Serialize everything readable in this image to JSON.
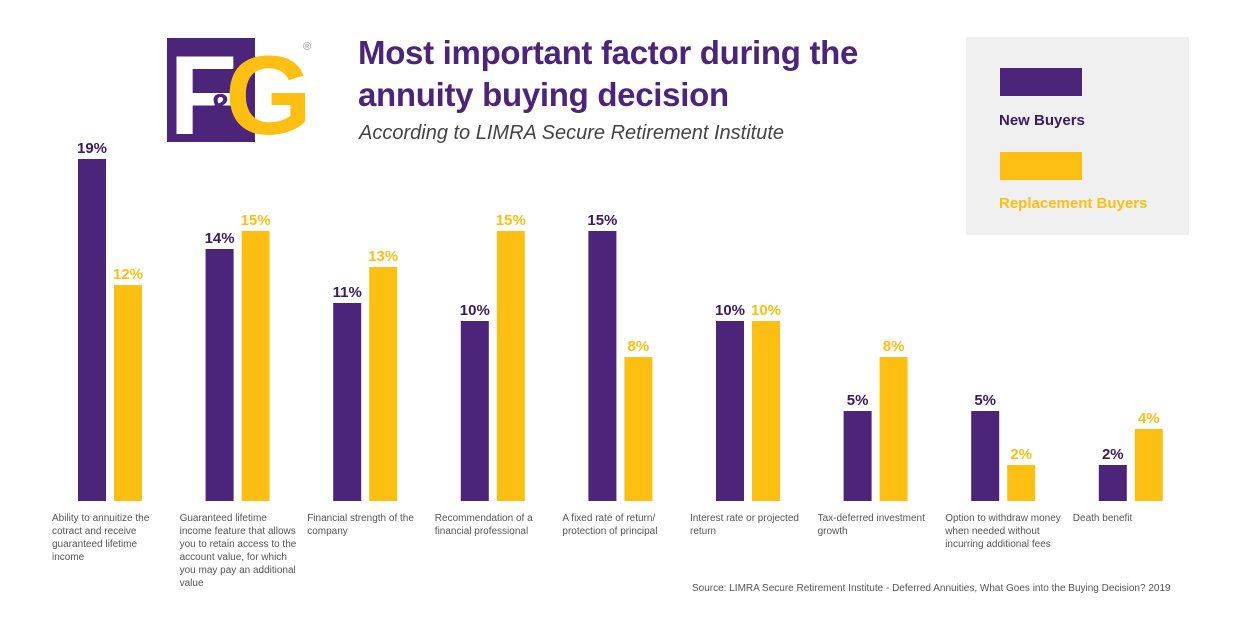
{
  "logo": {
    "text_left": "F",
    "text_amp": "&",
    "text_right": "G",
    "registered": "®"
  },
  "header": {
    "title_line1": "Most important factor during the",
    "title_line2": "annuity buying decision",
    "subtitle": "According to LIMRA Secure Retirement Institute"
  },
  "colors": {
    "new_buyers": "#4c2479",
    "replacement_buyers": "#fdbf12",
    "legend_bg": "#f0f0f0"
  },
  "legend": {
    "items": [
      {
        "label": "New Buyers",
        "color": "#4c2479",
        "text_color": "#3a1c5e"
      },
      {
        "label": "Replacement Buyers",
        "color": "#fdbf12",
        "text_color": "#fdbf12"
      }
    ]
  },
  "chart_data": {
    "type": "bar",
    "title": "Most important factor during the annuity buying decision",
    "subtitle": "According to LIMRA Secure Retirement Institute",
    "xlabel": "",
    "ylabel": "",
    "ylim": [
      0,
      19
    ],
    "grid": false,
    "legend_position": "top-right",
    "value_suffix": "%",
    "categories": [
      "Ability to annuitize the cotract and receive guaranteed lifetime income",
      "Guaranteed lifetime income feature that allows you to retain access to the account value, for which you may pay an additional value",
      "Financial strength of the company",
      "Recommendation of a financial professional",
      "A fixed rate of return/ protection of principal",
      "Interest rate or projected return",
      "Tax-deferred investment growth",
      "Option to withdraw money when needed without incurring additional fees",
      "Death benefit"
    ],
    "series": [
      {
        "name": "New Buyers",
        "values": [
          19,
          14,
          11,
          10,
          15,
          10,
          5,
          5,
          2
        ]
      },
      {
        "name": "Replacement Buyers",
        "values": [
          12,
          15,
          13,
          15,
          8,
          10,
          8,
          2,
          4
        ]
      }
    ]
  },
  "source": "Source: LIMRA Secure Retirement Institute - Deferred Annuities, What Goes into the Buying Decision? 2019"
}
